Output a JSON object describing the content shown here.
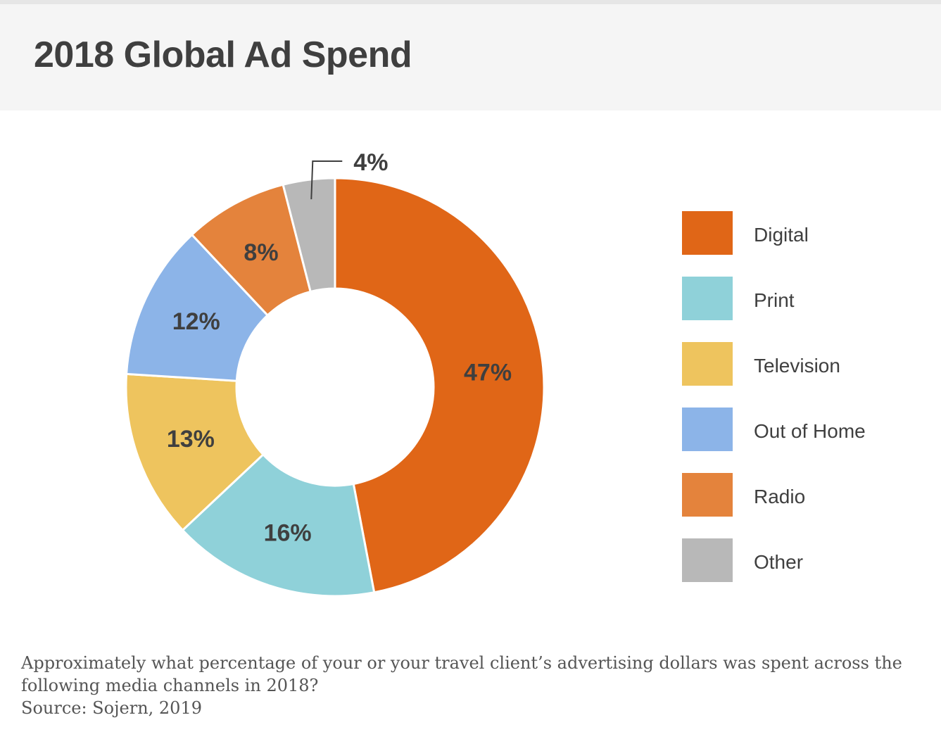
{
  "header": {
    "title": "2018 Global Ad Spend"
  },
  "chart_data": {
    "type": "pie",
    "title": "2018 Global Ad Spend",
    "donut": true,
    "categories": [
      "Digital",
      "Print",
      "Television",
      "Out of Home",
      "Radio",
      "Other"
    ],
    "values": [
      47,
      16,
      13,
      12,
      8,
      4
    ],
    "data_labels": [
      "47%",
      "16%",
      "13%",
      "12%",
      "8%",
      "4%"
    ],
    "colors": [
      "#e06617",
      "#8fd1d9",
      "#eec45e",
      "#8cb4e8",
      "#e4833c",
      "#b8b8b8"
    ],
    "legend_position": "right"
  },
  "footer": {
    "question": "Approximately what percentage of your or your travel client’s advertising dollars was spent across the following media channels in 2018?",
    "source": "Source: Sojern, 2019"
  }
}
